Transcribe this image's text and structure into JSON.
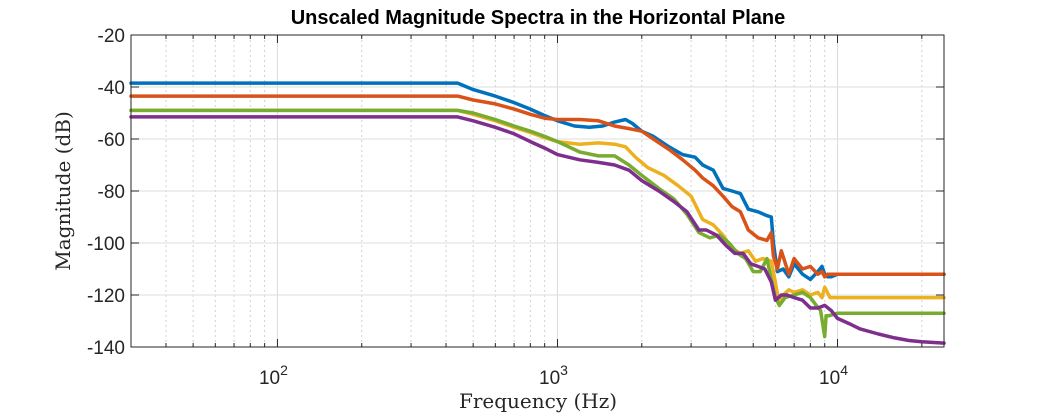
{
  "chart_data": {
    "type": "line",
    "title": "Unscaled Magnitude Spectra in the Horizontal Plane",
    "xlabel": "Frequency (Hz)",
    "ylabel": "Magnitude (dB)",
    "xscale": "log",
    "xlim": [
      30,
      24000
    ],
    "ylim": [
      -140,
      -20
    ],
    "grid": true,
    "legend": "none",
    "xticks": [
      {
        "value": 100,
        "base": "10",
        "exp": "2"
      },
      {
        "value": 1000,
        "base": "10",
        "exp": "3"
      },
      {
        "value": 10000,
        "base": "10",
        "exp": "4"
      }
    ],
    "yticks": [
      "-20",
      "-40",
      "-60",
      "-80",
      "-100",
      "-120",
      "-140"
    ],
    "series": [
      {
        "color": "#0072BD",
        "x": [
          30,
          440,
          500,
          600,
          700,
          800,
          900,
          1000,
          1150,
          1300,
          1450,
          1600,
          1750,
          1850,
          2000,
          2200,
          2500,
          2800,
          3100,
          3300,
          3600,
          3900,
          4200,
          4500,
          4800,
          5200,
          5600,
          5800,
          5900,
          6100,
          6400,
          6700,
          7000,
          7500,
          8000,
          8500,
          8800,
          9000,
          9200,
          9500,
          10000,
          12000,
          16000,
          20000,
          24000
        ],
        "values": [
          -38.5,
          -38.5,
          -41,
          -43.5,
          -46,
          -48.5,
          -51,
          -53,
          -55,
          -55.5,
          -55,
          -53.5,
          -52.5,
          -54,
          -57,
          -59,
          -63,
          -66,
          -67,
          -70,
          -72,
          -79,
          -80,
          -81,
          -87,
          -88,
          -89.5,
          -90,
          -100,
          -111,
          -110,
          -113,
          -108,
          -112,
          -114,
          -111,
          -109,
          -112,
          -113,
          -113,
          -112,
          -112,
          -112,
          -112,
          -112
        ]
      },
      {
        "color": "#D95319",
        "x": [
          30,
          440,
          500,
          600,
          700,
          800,
          900,
          1000,
          1200,
          1400,
          1600,
          1800,
          2000,
          2200,
          2500,
          2800,
          3100,
          3300,
          3600,
          3900,
          4200,
          4500,
          4800,
          5200,
          5600,
          5800,
          5900,
          6100,
          6300,
          6700,
          7000,
          7500,
          8000,
          8500,
          8800,
          9000,
          9200,
          9500,
          10000,
          12000,
          16000,
          20000,
          24000
        ],
        "values": [
          -43.5,
          -43.5,
          -45,
          -46.5,
          -48.5,
          -50.5,
          -52,
          -52.5,
          -52.5,
          -53,
          -55,
          -56,
          -57,
          -60,
          -64,
          -68,
          -72,
          -75,
          -78,
          -82,
          -86,
          -88,
          -95,
          -98,
          -99,
          -96,
          -105,
          -110,
          -103,
          -112,
          -106,
          -110,
          -109,
          -112,
          -111,
          -113,
          -112,
          -112,
          -112,
          -112,
          -112,
          -112,
          -112
        ]
      },
      {
        "color": "#EDB120",
        "x": [
          30,
          440,
          500,
          600,
          700,
          800,
          900,
          1000,
          1200,
          1400,
          1600,
          1750,
          1900,
          2100,
          2400,
          2700,
          3000,
          3300,
          3600,
          3900,
          4200,
          4500,
          4800,
          5100,
          5400,
          5800,
          6000,
          6200,
          6400,
          6700,
          7000,
          7500,
          8000,
          8500,
          8800,
          9000,
          9400,
          10000,
          12000,
          16000,
          20000,
          24000
        ],
        "values": [
          -49,
          -49,
          -50.5,
          -53,
          -55.5,
          -57.5,
          -59.5,
          -61,
          -62,
          -61.5,
          -62,
          -63,
          -67,
          -71,
          -74,
          -78,
          -82,
          -91,
          -93,
          -97,
          -102,
          -104,
          -103,
          -107,
          -106,
          -107,
          -115,
          -124,
          -120,
          -118,
          -119,
          -118,
          -120,
          -119,
          -121,
          -117,
          -121,
          -121,
          -121,
          -121,
          -121,
          -121
        ]
      },
      {
        "color": "#77AC30",
        "x": [
          30,
          440,
          500,
          600,
          700,
          800,
          900,
          1000,
          1200,
          1400,
          1600,
          1800,
          2000,
          2300,
          2600,
          2900,
          3200,
          3500,
          3800,
          4100,
          4400,
          4700,
          5000,
          5300,
          5600,
          5800,
          6000,
          6200,
          6500,
          7000,
          7500,
          8000,
          8400,
          8700,
          9000,
          9100,
          9300,
          10000,
          12000,
          16000,
          20000,
          24000
        ],
        "values": [
          -49,
          -49,
          -50,
          -52.5,
          -55,
          -57,
          -59,
          -61,
          -65,
          -66.5,
          -66.5,
          -70,
          -74,
          -79,
          -83,
          -89,
          -96,
          -98,
          -97,
          -100,
          -104,
          -106,
          -111,
          -111,
          -106,
          -114,
          -121,
          -124,
          -121,
          -120,
          -119,
          -121,
          -124,
          -126,
          -136,
          -128,
          -128,
          -127,
          -127,
          -127,
          -127,
          -127
        ]
      },
      {
        "color": "#7E2F8E",
        "x": [
          30,
          440,
          500,
          600,
          700,
          800,
          900,
          1000,
          1200,
          1400,
          1600,
          1800,
          2000,
          2300,
          2600,
          2900,
          3200,
          3400,
          3700,
          4000,
          4300,
          4600,
          4900,
          5200,
          5500,
          5800,
          6000,
          6300,
          6600,
          7000,
          7500,
          8000,
          8500,
          9000,
          9500,
          10000,
          11000,
          12000,
          14000,
          16000,
          18000,
          20000,
          24000
        ],
        "values": [
          -51.5,
          -51.5,
          -53,
          -55.5,
          -58,
          -61,
          -63.5,
          -66,
          -68,
          -69,
          -70,
          -72,
          -76,
          -80,
          -84,
          -88,
          -95,
          -95,
          -97,
          -101,
          -104,
          -104,
          -108,
          -109,
          -110,
          -115,
          -122,
          -120,
          -120,
          -121,
          -122,
          -125,
          -125,
          -124,
          -126,
          -129,
          -131,
          -133,
          -135,
          -136.5,
          -137.5,
          -138,
          -138.5
        ]
      }
    ]
  }
}
